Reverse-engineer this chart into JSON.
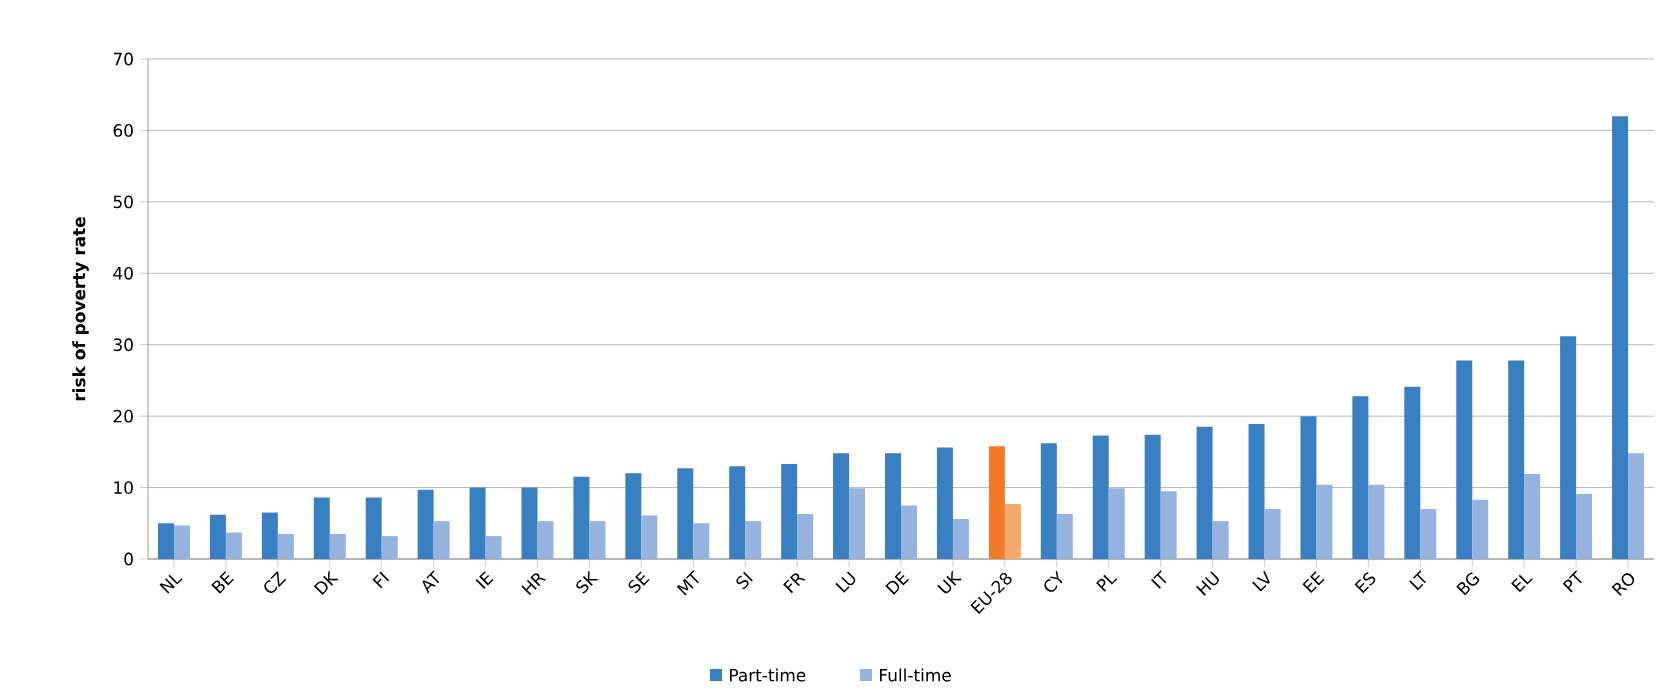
{
  "chart_data": {
    "type": "bar",
    "ylabel": "risk of poverty rate",
    "categories": [
      "NL",
      "BE",
      "CZ",
      "DK",
      "FI",
      "AT",
      "IE",
      "HR",
      "SK",
      "SE",
      "MT",
      "SI",
      "FR",
      "LU",
      "DE",
      "UK",
      "EU-28",
      "CY",
      "PL",
      "IT",
      "HU",
      "LV",
      "EE",
      "ES",
      "LT",
      "BG",
      "EL",
      "PT",
      "RO"
    ],
    "series": [
      {
        "name": "Part-time",
        "color": "#3a7fc1",
        "colors": [
          "#3a7fc1",
          "#3a7fc1",
          "#3a7fc1",
          "#3a7fc1",
          "#3a7fc1",
          "#3a7fc1",
          "#3a7fc1",
          "#3a7fc1",
          "#3a7fc1",
          "#3a7fc1",
          "#3a7fc1",
          "#3a7fc1",
          "#3a7fc1",
          "#3a7fc1",
          "#3a7fc1",
          "#3a7fc1",
          "#f07a28",
          "#3a7fc1",
          "#3a7fc1",
          "#3a7fc1",
          "#3a7fc1",
          "#3a7fc1",
          "#3a7fc1",
          "#3a7fc1",
          "#3a7fc1",
          "#3a7fc1",
          "#3a7fc1",
          "#3a7fc1",
          "#3a7fc1"
        ],
        "values": [
          5.0,
          6.2,
          6.5,
          8.6,
          8.6,
          9.7,
          10.0,
          10.0,
          11.5,
          12.0,
          12.7,
          13.0,
          13.3,
          14.8,
          14.8,
          15.6,
          15.8,
          16.2,
          17.3,
          17.4,
          18.5,
          18.9,
          20.0,
          22.8,
          24.1,
          27.8,
          27.8,
          31.2,
          62.0
        ]
      },
      {
        "name": "Full-time",
        "color": "#95b3de",
        "colors": [
          "#95b3de",
          "#95b3de",
          "#95b3de",
          "#95b3de",
          "#95b3de",
          "#95b3de",
          "#95b3de",
          "#95b3de",
          "#95b3de",
          "#95b3de",
          "#95b3de",
          "#95b3de",
          "#95b3de",
          "#95b3de",
          "#95b3de",
          "#95b3de",
          "#f5a96a",
          "#95b3de",
          "#95b3de",
          "#95b3de",
          "#95b3de",
          "#95b3de",
          "#95b3de",
          "#95b3de",
          "#95b3de",
          "#95b3de",
          "#95b3de",
          "#95b3de",
          "#95b3de"
        ],
        "values": [
          4.7,
          3.7,
          3.5,
          3.5,
          3.2,
          5.3,
          3.2,
          5.3,
          5.3,
          6.1,
          5.0,
          5.3,
          6.3,
          9.9,
          7.5,
          5.6,
          7.7,
          6.3,
          9.9,
          9.5,
          5.3,
          7.0,
          10.4,
          10.4,
          7.0,
          8.3,
          11.9,
          9.1,
          14.8
        ]
      }
    ],
    "ylim": [
      0,
      70
    ],
    "yticks": [
      0,
      10,
      20,
      30,
      40,
      50,
      60,
      70
    ],
    "grid": "y",
    "legend": "bottom"
  }
}
